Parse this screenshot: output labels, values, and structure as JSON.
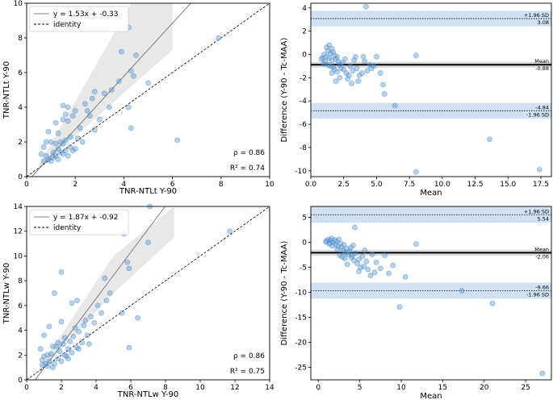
{
  "chart_data": [
    {
      "type": "scatter",
      "panel": "top-left",
      "xlabel": "TNR-NTLt Y-90",
      "ylabel": "TNR-NTLt Y-90",
      "xlim": [
        0,
        10
      ],
      "ylim": [
        0,
        10
      ],
      "xticks": [
        0,
        2,
        4,
        6,
        8,
        10
      ],
      "yticks": [
        0,
        2,
        4,
        6,
        8,
        10
      ],
      "legend": [
        {
          "label": "y = 1.53x + -0.33",
          "style": "solid"
        },
        {
          "label": "identity",
          "style": "dashed"
        }
      ],
      "regression": {
        "slope": 1.53,
        "intercept": -0.33
      },
      "band": {
        "x": [
          0.5,
          4.3,
          6.0
        ],
        "lower": [
          0.45,
          5.2,
          7.3
        ],
        "upper": [
          0.65,
          10.0,
          10.0
        ]
      },
      "stats": {
        "rho": "ρ = 0.86",
        "r2": "R² = 0.74"
      },
      "points": [
        [
          0.6,
          1.3
        ],
        [
          0.7,
          1.7
        ],
        [
          0.8,
          1.2
        ],
        [
          0.9,
          1.0
        ],
        [
          1.0,
          0.9
        ],
        [
          1.1,
          1.4
        ],
        [
          1.2,
          1.2
        ],
        [
          1.3,
          1.0
        ],
        [
          1.4,
          1.4
        ],
        [
          1.5,
          1.3
        ],
        [
          1.5,
          1.9
        ],
        [
          1.6,
          1.5
        ],
        [
          1.7,
          1.2
        ],
        [
          1.8,
          1.7
        ],
        [
          1.9,
          1.5
        ],
        [
          2.0,
          1.6
        ],
        [
          1.2,
          1.9
        ],
        [
          1.4,
          2.0
        ],
        [
          1.6,
          2.1
        ],
        [
          1.8,
          2.3
        ],
        [
          1.0,
          2.0
        ],
        [
          0.8,
          2.0
        ],
        [
          1.3,
          2.5
        ],
        [
          0.9,
          2.6
        ],
        [
          1.2,
          3.1
        ],
        [
          1.5,
          3.3
        ],
        [
          1.7,
          3.2
        ],
        [
          1.5,
          4.1
        ],
        [
          1.7,
          4.0
        ],
        [
          1.9,
          3.5
        ],
        [
          2.0,
          3.8
        ],
        [
          1.6,
          3.6
        ],
        [
          2.4,
          4.2
        ],
        [
          2.5,
          3.8
        ],
        [
          2.7,
          4.5
        ],
        [
          2.8,
          4.9
        ],
        [
          2.6,
          3.5
        ],
        [
          3.2,
          4.8
        ],
        [
          3.5,
          5.0
        ],
        [
          3.4,
          4.0
        ],
        [
          3.8,
          5.5
        ],
        [
          3.9,
          7.2
        ],
        [
          4.2,
          8.6
        ],
        [
          4.3,
          6.1
        ],
        [
          4.4,
          5.8
        ],
        [
          4.5,
          7.0
        ],
        [
          4.2,
          4.0
        ],
        [
          4.3,
          2.8
        ],
        [
          5.0,
          5.4
        ],
        [
          6.2,
          2.1
        ],
        [
          7.9,
          8.0
        ],
        [
          2.2,
          2.8
        ],
        [
          2.3,
          2.0
        ],
        [
          2.8,
          2.7
        ],
        [
          3.0,
          3.3
        ],
        [
          1.1,
          1.1
        ],
        [
          0.7,
          0.9
        ],
        [
          1.3,
          1.6
        ],
        [
          2.1,
          2.2
        ]
      ]
    },
    {
      "type": "scatter",
      "panel": "top-right",
      "subtype": "bland-altman",
      "xlabel": "Mean",
      "ylabel": "Difference (Y-90 - Tc-MAA)",
      "xlim": [
        0,
        18.3
      ],
      "ylim": [
        -10.5,
        4.4
      ],
      "xticks": [
        0.0,
        2.5,
        5.0,
        7.5,
        10.0,
        12.5,
        15.0,
        17.5
      ],
      "xtick_labels": [
        "0.0",
        "2.5",
        "5.0",
        "7.5",
        "10.0",
        "12.5",
        "15.0",
        "17.5"
      ],
      "yticks": [
        -10,
        -8,
        -6,
        -4,
        -2,
        0,
        2,
        4
      ],
      "lines": {
        "upper": 3.08,
        "mean": -0.88,
        "lower": -4.84
      },
      "labels": {
        "upper_tag": "+1.96 SD",
        "upper_value": "3.08",
        "mean_tag": "Mean",
        "mean_value": "-0.88",
        "lower_value": "-4.84",
        "lower_tag": "-1.96 SD"
      },
      "points": [
        [
          1.0,
          0.0
        ],
        [
          1.2,
          -0.2
        ],
        [
          1.3,
          0.3
        ],
        [
          1.4,
          -0.3
        ],
        [
          1.5,
          0.1
        ],
        [
          1.6,
          -0.5
        ],
        [
          1.7,
          0.2
        ],
        [
          1.8,
          -0.1
        ],
        [
          1.9,
          -0.4
        ],
        [
          2.0,
          -0.2
        ],
        [
          2.1,
          -0.6
        ],
        [
          2.2,
          -0.9
        ],
        [
          2.3,
          -1.2
        ],
        [
          2.4,
          -0.7
        ],
        [
          1.1,
          -0.6
        ],
        [
          1.3,
          -0.9
        ],
        [
          1.5,
          -1.0
        ],
        [
          1.7,
          -1.1
        ],
        [
          0.9,
          -0.3
        ],
        [
          0.8,
          -0.4
        ],
        [
          1.2,
          0.6
        ],
        [
          1.4,
          0.8
        ],
        [
          1.6,
          0.5
        ],
        [
          1.8,
          -1.3
        ],
        [
          2.0,
          -1.5
        ],
        [
          2.5,
          -1.3
        ],
        [
          2.7,
          -1.6
        ],
        [
          2.9,
          -1.8
        ],
        [
          3.0,
          -1.0
        ],
        [
          3.2,
          -1.4
        ],
        [
          3.3,
          -0.5
        ],
        [
          3.5,
          -1.2
        ],
        [
          3.6,
          -2.3
        ],
        [
          3.7,
          -1.8
        ],
        [
          3.9,
          -1.6
        ],
        [
          4.0,
          -0.2
        ],
        [
          4.1,
          -0.6
        ],
        [
          4.2,
          4.1
        ],
        [
          4.3,
          -1.4
        ],
        [
          4.5,
          -0.9
        ],
        [
          4.6,
          -1.2
        ],
        [
          4.8,
          -1.0
        ],
        [
          5.0,
          -0.2
        ],
        [
          5.3,
          -1.6
        ],
        [
          5.5,
          -2.6
        ],
        [
          5.6,
          -3.4
        ],
        [
          6.4,
          -4.4
        ],
        [
          8.0,
          -0.1
        ],
        [
          8.0,
          -10.1
        ],
        [
          13.6,
          -7.3
        ],
        [
          17.4,
          -9.9
        ],
        [
          1.9,
          -2.3
        ],
        [
          2.2,
          -2.0
        ],
        [
          2.8,
          -2.1
        ],
        [
          3.1,
          -2.5
        ],
        [
          1.0,
          -0.8
        ],
        [
          1.6,
          -1.6
        ],
        [
          2.6,
          -0.4
        ],
        [
          3.4,
          -0.2
        ]
      ]
    },
    {
      "type": "scatter",
      "panel": "bottom-left",
      "xlabel": "TNR-NTLw Y-90",
      "ylabel": "TNR-NTLw Y-90",
      "xlim": [
        0,
        14
      ],
      "ylim": [
        0,
        14
      ],
      "xticks": [
        0,
        2,
        4,
        6,
        8,
        10,
        12,
        14
      ],
      "yticks": [
        0,
        2,
        4,
        6,
        8,
        10,
        12,
        14
      ],
      "legend": [
        {
          "label": "y = 1.87x + -0.92",
          "style": "solid"
        },
        {
          "label": "identity",
          "style": "dashed"
        }
      ],
      "regression": {
        "slope": 1.87,
        "intercept": -0.92
      },
      "band": {
        "x": [
          0.7,
          5.0,
          8.5
        ],
        "lower": [
          0.5,
          7.0,
          11.5
        ],
        "upper": [
          0.9,
          10.0,
          14.0
        ]
      },
      "stats": {
        "rho": "ρ = 0.86",
        "r2": "R² = 0.75"
      },
      "points": [
        [
          0.8,
          2.5
        ],
        [
          0.9,
          1.6
        ],
        [
          1.0,
          1.9
        ],
        [
          1.1,
          1.3
        ],
        [
          1.2,
          1.1
        ],
        [
          1.3,
          1.5
        ],
        [
          1.4,
          2.1
        ],
        [
          1.5,
          1.0
        ],
        [
          1.6,
          1.3
        ],
        [
          1.7,
          2.7
        ],
        [
          1.8,
          1.7
        ],
        [
          1.9,
          2.3
        ],
        [
          2.0,
          1.5
        ],
        [
          2.1,
          2.9
        ],
        [
          2.2,
          3.4
        ],
        [
          2.3,
          1.9
        ],
        [
          2.4,
          2.5
        ],
        [
          2.5,
          3.1
        ],
        [
          2.6,
          2.2
        ],
        [
          2.7,
          3.5
        ],
        [
          2.8,
          4.2
        ],
        [
          2.9,
          2.6
        ],
        [
          3.0,
          3.9
        ],
        [
          3.2,
          3.0
        ],
        [
          3.3,
          4.4
        ],
        [
          3.4,
          4.8
        ],
        [
          3.5,
          3.6
        ],
        [
          3.7,
          5.1
        ],
        [
          3.9,
          4.6
        ],
        [
          4.1,
          6.0
        ],
        [
          4.3,
          5.4
        ],
        [
          4.5,
          8.2
        ],
        [
          4.6,
          6.4
        ],
        [
          4.8,
          7.0
        ],
        [
          5.5,
          5.4
        ],
        [
          5.6,
          11.8
        ],
        [
          5.8,
          9.5
        ],
        [
          5.9,
          9.0
        ],
        [
          6.4,
          5.0
        ],
        [
          7.0,
          11.1
        ],
        [
          7.1,
          14.0
        ],
        [
          5.9,
          2.6
        ],
        [
          11.7,
          12.0
        ],
        [
          1.6,
          7.0
        ],
        [
          1.3,
          4.3
        ],
        [
          1.0,
          3.6
        ],
        [
          2.0,
          8.7
        ],
        [
          2.6,
          6.2
        ],
        [
          2.0,
          4.7
        ],
        [
          1.2,
          2.0
        ],
        [
          1.5,
          2.7
        ],
        [
          2.4,
          1.7
        ],
        [
          3.0,
          2.5
        ],
        [
          1.8,
          3.0
        ],
        [
          2.2,
          2.0
        ],
        [
          3.6,
          2.9
        ],
        [
          0.9,
          1.2
        ],
        [
          2.9,
          6.4
        ]
      ]
    },
    {
      "type": "scatter",
      "panel": "bottom-right",
      "subtype": "bland-altman",
      "xlabel": "Mean",
      "ylabel": "Difference (Y-90 - Tc-MAA)",
      "xlim": [
        -0.9,
        28.1
      ],
      "ylim": [
        -27.5,
        7.2
      ],
      "xticks": [
        0,
        5,
        10,
        15,
        20,
        25
      ],
      "xtick_labels": [
        "0",
        "5",
        "10",
        "15",
        "20",
        "25"
      ],
      "yticks": [
        -25,
        -20,
        -15,
        -10,
        -5,
        0,
        5
      ],
      "lines": {
        "upper": 5.54,
        "mean": -2.06,
        "lower": -9.66
      },
      "labels": {
        "upper_tag": "+1.96 SD",
        "upper_value": "5.54",
        "mean_tag": "Mean",
        "mean_value": "-2.06",
        "lower_value": "-9.66",
        "lower_tag": "-1.96 SD"
      },
      "points": [
        [
          1.0,
          0.3
        ],
        [
          1.2,
          0.6
        ],
        [
          1.4,
          -0.1
        ],
        [
          1.5,
          0.4
        ],
        [
          1.6,
          0.8
        ],
        [
          1.8,
          0.0
        ],
        [
          2.0,
          0.5
        ],
        [
          2.1,
          -0.4
        ],
        [
          2.2,
          0.2
        ],
        [
          2.4,
          -0.8
        ],
        [
          2.5,
          0.6
        ],
        [
          2.7,
          -0.2
        ],
        [
          2.8,
          -1.0
        ],
        [
          3.0,
          -1.6
        ],
        [
          3.1,
          -0.5
        ],
        [
          3.3,
          -2.0
        ],
        [
          3.4,
          -1.2
        ],
        [
          3.6,
          -2.4
        ],
        [
          3.8,
          -1.8
        ],
        [
          4.0,
          -3.0
        ],
        [
          4.1,
          -2.6
        ],
        [
          4.3,
          -3.6
        ],
        [
          4.5,
          -2.2
        ],
        [
          4.7,
          -4.2
        ],
        [
          4.9,
          -3.4
        ],
        [
          5.1,
          -5.0
        ],
        [
          5.3,
          -2.8
        ],
        [
          5.5,
          -4.8
        ],
        [
          5.8,
          -3.8
        ],
        [
          6.0,
          -5.4
        ],
        [
          6.3,
          -6.6
        ],
        [
          6.5,
          -2.4
        ],
        [
          7.0,
          -4.0
        ],
        [
          7.5,
          -5.2
        ],
        [
          8.0,
          -2.6
        ],
        [
          8.5,
          -6.2
        ],
        [
          9.0,
          -4.6
        ],
        [
          9.8,
          -12.9
        ],
        [
          10.5,
          -6.9
        ],
        [
          11.8,
          -0.3
        ],
        [
          17.3,
          -9.7
        ],
        [
          21.0,
          -12.2
        ],
        [
          27.0,
          -26.2
        ],
        [
          2.6,
          -2.6
        ],
        [
          3.2,
          -3.2
        ],
        [
          4.4,
          3.0
        ],
        [
          4.2,
          -0.6
        ],
        [
          2.3,
          -1.4
        ],
        [
          1.7,
          -0.7
        ],
        [
          3.5,
          -4.4
        ],
        [
          6.8,
          -6.0
        ],
        [
          5.6,
          -1.6
        ],
        [
          4.9,
          -5.8
        ],
        [
          1.3,
          -0.3
        ],
        [
          0.9,
          0.1
        ],
        [
          2.9,
          -2.9
        ],
        [
          3.9,
          -1.1
        ]
      ]
    }
  ]
}
